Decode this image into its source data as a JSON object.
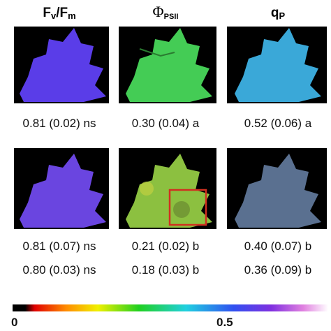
{
  "headers": [
    [
      "F",
      "v",
      "/F",
      "m"
    ],
    [
      "Φ",
      "PSII"
    ],
    [
      "q",
      "P"
    ]
  ],
  "rows": [
    [
      "0.81 (0.02) ns",
      "0.30 (0.04) a",
      "0.52 (0.06) a"
    ],
    [
      "0.81 (0.07) ns",
      "0.21 (0.02) b",
      "0.40 (0.07) b"
    ],
    [
      "0.80 (0.03) ns",
      "0.18 (0.03) b",
      "0.36 (0.09) b"
    ]
  ],
  "colorbar": {
    "ticks": [
      "0",
      "0.5"
    ]
  }
}
